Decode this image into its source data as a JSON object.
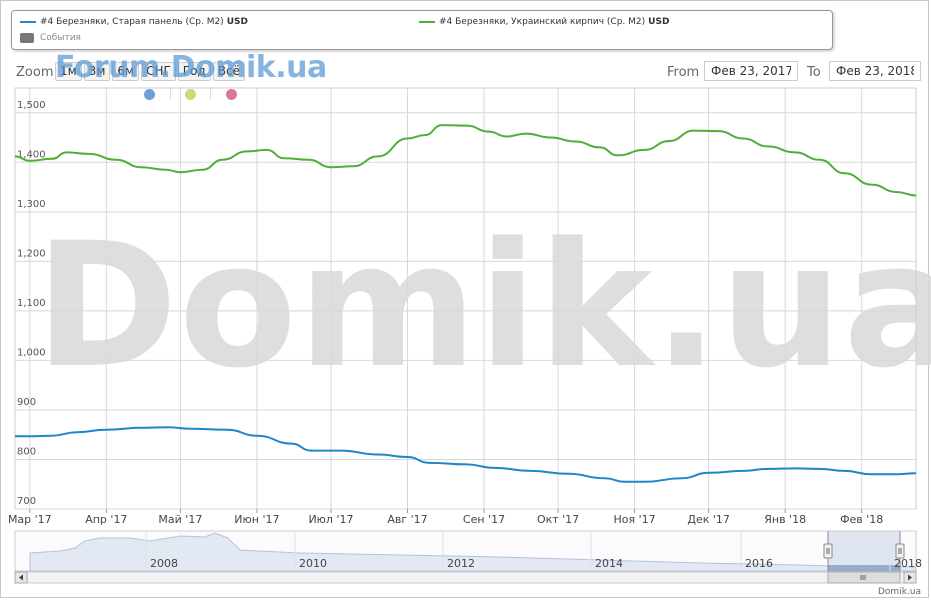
{
  "legend": {
    "series1_label": "#4 Березняки, Старая панель (Ср. М2)",
    "series1_unit": "USD",
    "series2_label": "#4 Березняки, Украинский кирпич (Ср. М2)",
    "series2_unit": "USD",
    "events_label": "События"
  },
  "zoom": {
    "label": "Zoom",
    "buttons": [
      "1м",
      "3м",
      "6м",
      "СНГ",
      "Год",
      "Всё"
    ]
  },
  "range": {
    "from_label": "From",
    "from_value": "Фев 23, 2017",
    "to_label": "To",
    "to_value": "Фев 23, 2018"
  },
  "watermark_top": "Forum.Domik.ua",
  "watermark_big": "Domik.ua",
  "footer_brand": "Domik.ua",
  "colors": {
    "series1": "#1f86c8",
    "series2": "#4daf38",
    "dot_blue": "#6f9fd6",
    "dot_green": "#c8dc7a",
    "dot_pink": "#d9779a",
    "navigator_fill": "#e3e9f3",
    "navigator_selected": "#c9d6e9"
  },
  "chart_data": {
    "type": "line",
    "x_type": "date",
    "x_range": [
      "2017-02-23",
      "2018-02-23"
    ],
    "ylim": [
      700,
      1550
    ],
    "y_ticks": [
      700,
      800,
      900,
      1000,
      1100,
      1200,
      1300,
      1400,
      1500
    ],
    "y_tick_labels": [
      "700",
      "800",
      "900",
      "1,000",
      "1,100",
      "1,200",
      "1,300",
      "1,400",
      "1,500"
    ],
    "x_tick_labels": [
      {
        "date": "2017-03-01",
        "label": "Мар '17"
      },
      {
        "date": "2017-04-01",
        "label": "Апр '17"
      },
      {
        "date": "2017-05-01",
        "label": "Май '17"
      },
      {
        "date": "2017-06-01",
        "label": "Июн '17"
      },
      {
        "date": "2017-07-01",
        "label": "Июл '17"
      },
      {
        "date": "2017-08-01",
        "label": "Авг '17"
      },
      {
        "date": "2017-09-01",
        "label": "Сен '17"
      },
      {
        "date": "2017-10-01",
        "label": "Окт '17"
      },
      {
        "date": "2017-11-01",
        "label": "Ноя '17"
      },
      {
        "date": "2017-12-01",
        "label": "Дек '17"
      },
      {
        "date": "2018-01-01",
        "label": "Янв '18"
      },
      {
        "date": "2018-02-01",
        "label": "Фев '18"
      }
    ],
    "grid": true,
    "series": [
      {
        "name": "#4 Березняки, Старая панель (Ср. М2) USD",
        "color": "#1f86c8",
        "points": [
          [
            "2017-02-23",
            847
          ],
          [
            "2017-03-01",
            847
          ],
          [
            "2017-03-10",
            848
          ],
          [
            "2017-03-20",
            855
          ],
          [
            "2017-04-01",
            860
          ],
          [
            "2017-04-15",
            864
          ],
          [
            "2017-04-26",
            865
          ],
          [
            "2017-05-05",
            862
          ],
          [
            "2017-05-20",
            860
          ],
          [
            "2017-06-01",
            848
          ],
          [
            "2017-06-15",
            832
          ],
          [
            "2017-06-23",
            818
          ],
          [
            "2017-07-05",
            818
          ],
          [
            "2017-07-20",
            810
          ],
          [
            "2017-08-01",
            805
          ],
          [
            "2017-08-10",
            793
          ],
          [
            "2017-08-25",
            790
          ],
          [
            "2017-09-05",
            783
          ],
          [
            "2017-09-20",
            777
          ],
          [
            "2017-10-05",
            771
          ],
          [
            "2017-10-20",
            762
          ],
          [
            "2017-10-28",
            755
          ],
          [
            "2017-11-05",
            755
          ],
          [
            "2017-11-20",
            762
          ],
          [
            "2017-12-01",
            773
          ],
          [
            "2017-12-15",
            777
          ],
          [
            "2017-12-25",
            781
          ],
          [
            "2018-01-05",
            782
          ],
          [
            "2018-01-15",
            781
          ],
          [
            "2018-01-25",
            777
          ],
          [
            "2018-02-05",
            770
          ],
          [
            "2018-02-15",
            770
          ],
          [
            "2018-02-23",
            772
          ]
        ]
      },
      {
        "name": "#4 Березняки, Украинский кирпич (Ср. М2) USD",
        "color": "#4daf38",
        "points": [
          [
            "2017-02-23",
            1412
          ],
          [
            "2017-03-01",
            1403
          ],
          [
            "2017-03-10",
            1407
          ],
          [
            "2017-03-16",
            1420
          ],
          [
            "2017-03-25",
            1417
          ],
          [
            "2017-04-05",
            1405
          ],
          [
            "2017-04-15",
            1390
          ],
          [
            "2017-04-25",
            1385
          ],
          [
            "2017-05-01",
            1380
          ],
          [
            "2017-05-10",
            1385
          ],
          [
            "2017-05-18",
            1405
          ],
          [
            "2017-05-28",
            1422
          ],
          [
            "2017-06-05",
            1425
          ],
          [
            "2017-06-12",
            1408
          ],
          [
            "2017-06-22",
            1405
          ],
          [
            "2017-07-01",
            1390
          ],
          [
            "2017-07-10",
            1392
          ],
          [
            "2017-07-20",
            1412
          ],
          [
            "2017-08-01",
            1448
          ],
          [
            "2017-08-08",
            1455
          ],
          [
            "2017-08-15",
            1475
          ],
          [
            "2017-08-25",
            1474
          ],
          [
            "2017-09-03",
            1462
          ],
          [
            "2017-09-10",
            1452
          ],
          [
            "2017-09-18",
            1458
          ],
          [
            "2017-09-28",
            1450
          ],
          [
            "2017-10-08",
            1442
          ],
          [
            "2017-10-18",
            1430
          ],
          [
            "2017-10-25",
            1414
          ],
          [
            "2017-11-05",
            1425
          ],
          [
            "2017-11-15",
            1443
          ],
          [
            "2017-11-25",
            1464
          ],
          [
            "2017-12-05",
            1463
          ],
          [
            "2017-12-15",
            1448
          ],
          [
            "2017-12-25",
            1432
          ],
          [
            "2018-01-05",
            1420
          ],
          [
            "2018-01-15",
            1405
          ],
          [
            "2018-01-25",
            1378
          ],
          [
            "2018-02-05",
            1355
          ],
          [
            "2018-02-15",
            1340
          ],
          [
            "2018-02-23",
            1333
          ]
        ]
      }
    ],
    "navigator": {
      "x_tick_labels": [
        "2008",
        "2010",
        "2012",
        "2014",
        "2016",
        "2018"
      ]
    }
  }
}
